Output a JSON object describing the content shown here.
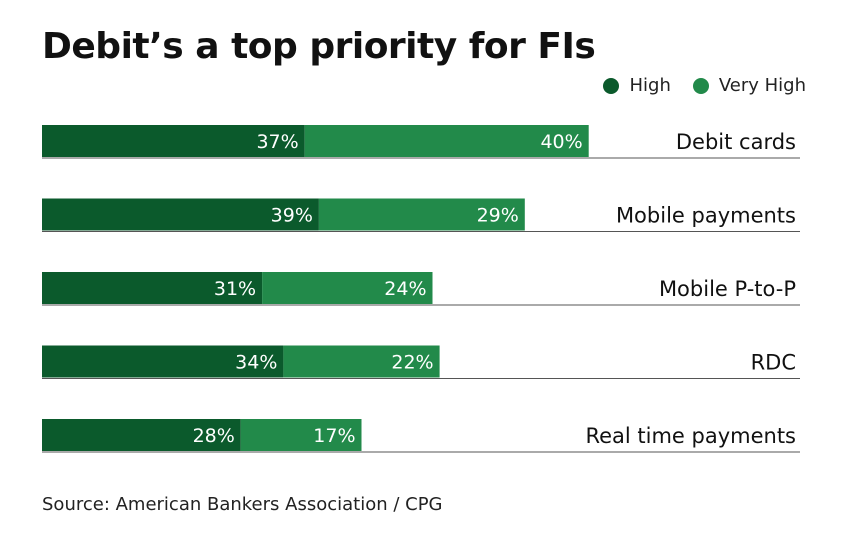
{
  "title": "Debit’s a top priority for FIs",
  "source": "Source: American Bankers Association / CPG",
  "colors": {
    "high": "#0b5a2c",
    "very_high": "#228a4a",
    "rule": "#555555",
    "label_text": "#ffffff"
  },
  "legend": [
    {
      "name": "High",
      "color": "#0b5a2c"
    },
    {
      "name": "Very High",
      "color": "#228a4a"
    }
  ],
  "chart_data": {
    "type": "bar",
    "orientation": "horizontal",
    "stacked": true,
    "categories": [
      "Debit cards",
      "Mobile payments",
      "Mobile P-to-P",
      "RDC",
      "Real time payments"
    ],
    "series": [
      {
        "name": "High",
        "values": [
          37,
          39,
          31,
          34,
          28
        ],
        "labels": [
          "37%",
          "39%",
          "31%",
          "34%",
          "28%"
        ]
      },
      {
        "name": "Very High",
        "values": [
          40,
          29,
          24,
          22,
          17
        ],
        "labels": [
          "40%",
          "29%",
          "24%",
          "22%",
          "17%"
        ]
      }
    ],
    "title": "Debit’s a top priority for FIs",
    "legend_position": "top-right",
    "grid": false,
    "axes_visible": false
  }
}
